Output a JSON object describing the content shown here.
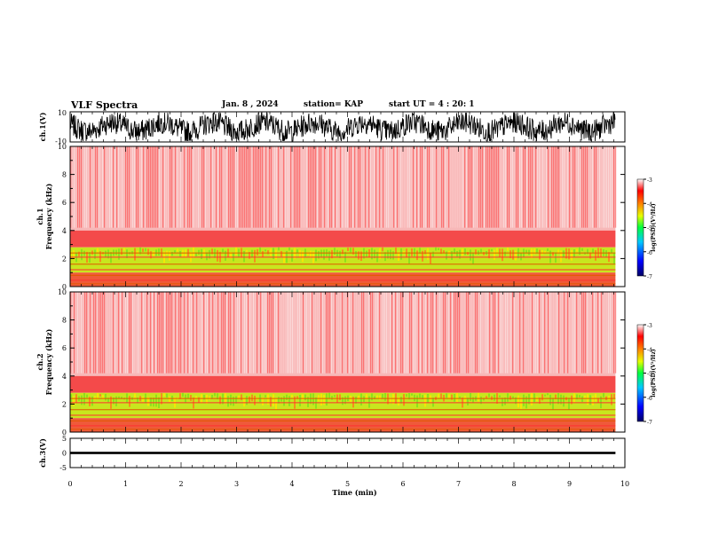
{
  "header": {
    "title": "VLF Spectra",
    "date": "Jan. 8 , 2024",
    "station": "station= KAP",
    "start": "start UT = 4 : 20: 1"
  },
  "chart_data": [
    {
      "type": "line",
      "name": "ch1-waveform",
      "ylabel": "ch.1(V)",
      "ylim": [
        -10,
        10
      ],
      "yticks": [
        "10",
        "-10"
      ],
      "xlim": [
        0,
        10
      ]
    },
    {
      "type": "heatmap",
      "name": "ch1-spectrogram",
      "ylabel_line1": "ch.1",
      "ylabel_line2": "Frequency (kHz)",
      "ylim": [
        0,
        10
      ],
      "yticks": [
        0,
        2,
        4,
        6,
        8,
        10
      ],
      "xlim": [
        0,
        10
      ],
      "data_end_min": 9.83,
      "colorbar": {
        "label": "log(PSD)(V²/Hz)",
        "range": [
          -7,
          -3
        ],
        "ticks": [
          "-3",
          "-4",
          "-5",
          "-6",
          "-7"
        ]
      }
    },
    {
      "type": "heatmap",
      "name": "ch2-spectrogram",
      "ylabel_line1": "ch.2",
      "ylabel_line2": "Frequency (kHz)",
      "ylim": [
        0,
        10
      ],
      "yticks": [
        0,
        2,
        4,
        6,
        8,
        10
      ],
      "xlim": [
        0,
        10
      ],
      "data_end_min": 9.83,
      "colorbar": {
        "label": "log(PSD)(V²/Hz)",
        "range": [
          -7,
          -3
        ],
        "ticks": [
          "-3",
          "-4",
          "-5",
          "-6",
          "-7"
        ]
      }
    },
    {
      "type": "line",
      "name": "ch3-waveform",
      "ylabel": "ch.3(V)",
      "ylim": [
        -5,
        5
      ],
      "yticks": [
        "5",
        "0",
        "-5"
      ],
      "xlim": [
        0,
        10
      ]
    }
  ],
  "xaxis": {
    "label": "Time (min)",
    "ticks": [
      "0",
      "1",
      "2",
      "3",
      "4",
      "5",
      "6",
      "7",
      "8",
      "9",
      "10"
    ]
  }
}
